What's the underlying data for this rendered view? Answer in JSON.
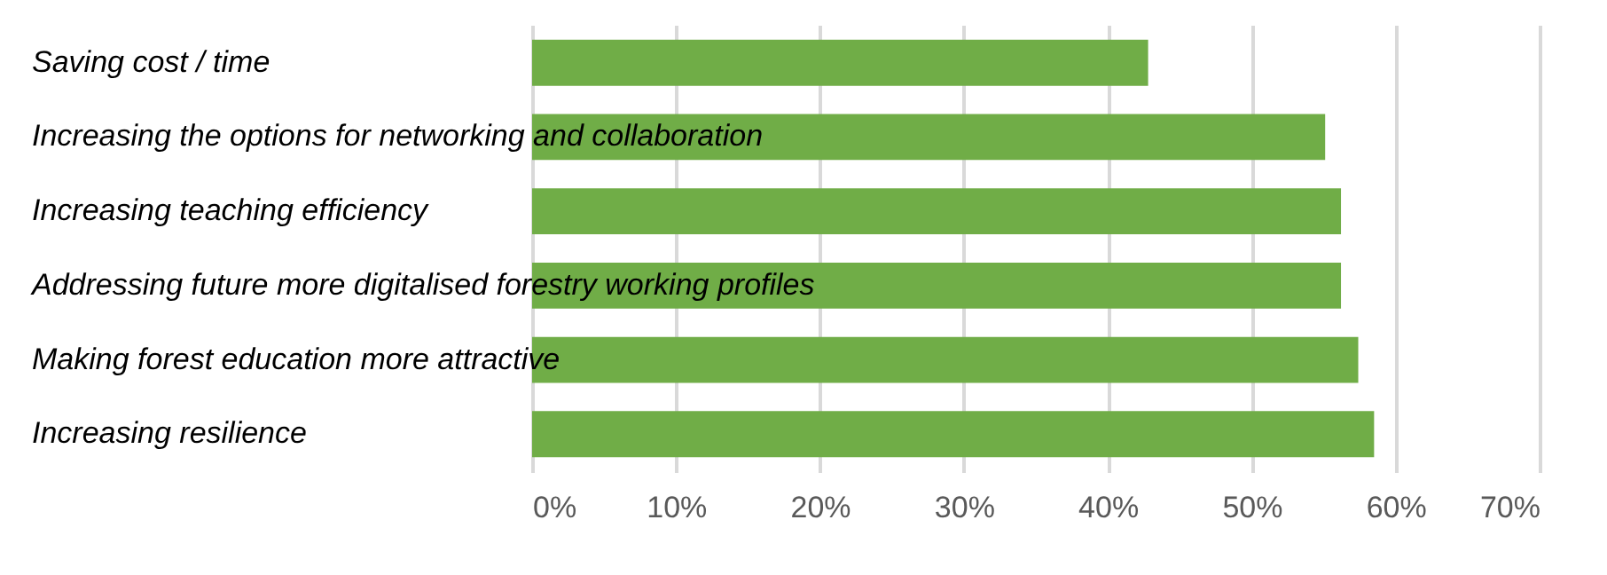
{
  "chart_data": {
    "type": "bar",
    "orientation": "horizontal",
    "categories": [
      "Saving cost / time",
      "Increasing the options for networking and collaboration",
      "Increasing teaching efficiency",
      "Addressing future more digitalised forestry working profiles",
      "Making forest education more attractive",
      "Increasing resilience"
    ],
    "values": [
      42.8,
      55.1,
      56.2,
      56.2,
      57.4,
      58.5
    ],
    "color": "#70ad47",
    "xlim": [
      0,
      70
    ],
    "xticks": [
      {
        "value": 0,
        "label": "0%"
      },
      {
        "value": 10,
        "label": "10%"
      },
      {
        "value": 20,
        "label": "20%"
      },
      {
        "value": 30,
        "label": "30%"
      },
      {
        "value": 40,
        "label": "40%"
      },
      {
        "value": 50,
        "label": "50%"
      },
      {
        "value": 60,
        "label": "60%"
      },
      {
        "value": 70,
        "label": "70%"
      }
    ],
    "grid": "x"
  }
}
